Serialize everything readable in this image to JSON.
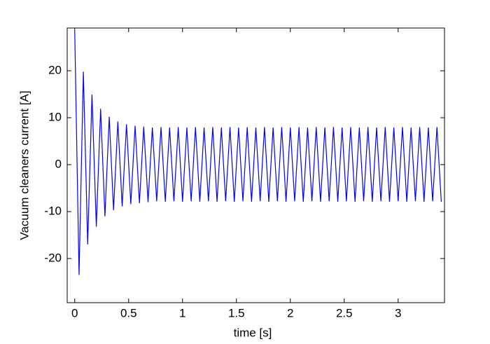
{
  "chart_data": {
    "type": "line",
    "xlabel": "time [s]",
    "ylabel": "Vacuum cleaners current [A]",
    "color": "#0000ff",
    "x": [
      0,
      0.04,
      0.08,
      0.12,
      0.16,
      0.2,
      0.24,
      0.28,
      0.32,
      0.36,
      0.4,
      0.44,
      0.48,
      0.52,
      0.56,
      0.6,
      0.64,
      0.68,
      0.72,
      0.76,
      0.8,
      0.84,
      0.88,
      0.92,
      0.96,
      1,
      1.04,
      1.08,
      1.12,
      1.16,
      1.2,
      1.24,
      1.28,
      1.32,
      1.36,
      1.4,
      1.44,
      1.48,
      1.52,
      1.56,
      1.6,
      1.64,
      1.68,
      1.72,
      1.76,
      1.8,
      1.84,
      1.88,
      1.92,
      1.96,
      2,
      2.04,
      2.08,
      2.12,
      2.16,
      2.2,
      2.24,
      2.28,
      2.32,
      2.36,
      2.4,
      2.44,
      2.48,
      2.52,
      2.56,
      2.6,
      2.64,
      2.68,
      2.72,
      2.76,
      2.8,
      2.84,
      2.88,
      2.92,
      2.96,
      3,
      3.04,
      3.08,
      3.12,
      3.16,
      3.2,
      3.24,
      3.28,
      3.32,
      3.36,
      3.4
    ],
    "values": [
      28.3,
      -23.5,
      19.8,
      -17.0,
      14.9,
      -13.2,
      11.9,
      -11.0,
      10.2,
      -9.7,
      9.2,
      -8.9,
      8.6,
      -8.4,
      8.3,
      -8.2,
      8.1,
      -8.0,
      7.9,
      -7.8,
      8.0,
      -7.9,
      7.9,
      -7.8,
      8.0,
      -7.9,
      7.9,
      -7.8,
      8.0,
      -7.9,
      7.9,
      -7.8,
      8.0,
      -7.9,
      7.9,
      -7.8,
      8.0,
      -7.9,
      7.9,
      -7.8,
      8.0,
      -7.9,
      7.9,
      -7.8,
      8.0,
      -7.9,
      7.9,
      -7.8,
      8.0,
      -7.9,
      7.9,
      -7.8,
      8.0,
      -7.9,
      7.9,
      -7.8,
      8.0,
      -7.9,
      7.9,
      -7.8,
      8.0,
      -7.9,
      7.9,
      -7.8,
      8.0,
      -7.9,
      7.9,
      -7.8,
      8.0,
      -7.9,
      7.9,
      -7.8,
      8.0,
      -7.9,
      7.9,
      -7.8,
      8.0,
      -7.9,
      7.9,
      -7.8,
      8.0,
      -7.9,
      7.9,
      -7.8,
      8.0,
      -7.9
    ],
    "xlim": [
      -0.07,
      3.43
    ],
    "ylim": [
      -29.4,
      29.1
    ],
    "xticks": [
      0,
      0.5,
      1,
      1.5,
      2,
      2.5,
      3
    ],
    "yticks": [
      -20,
      -10,
      0,
      10,
      20
    ]
  }
}
